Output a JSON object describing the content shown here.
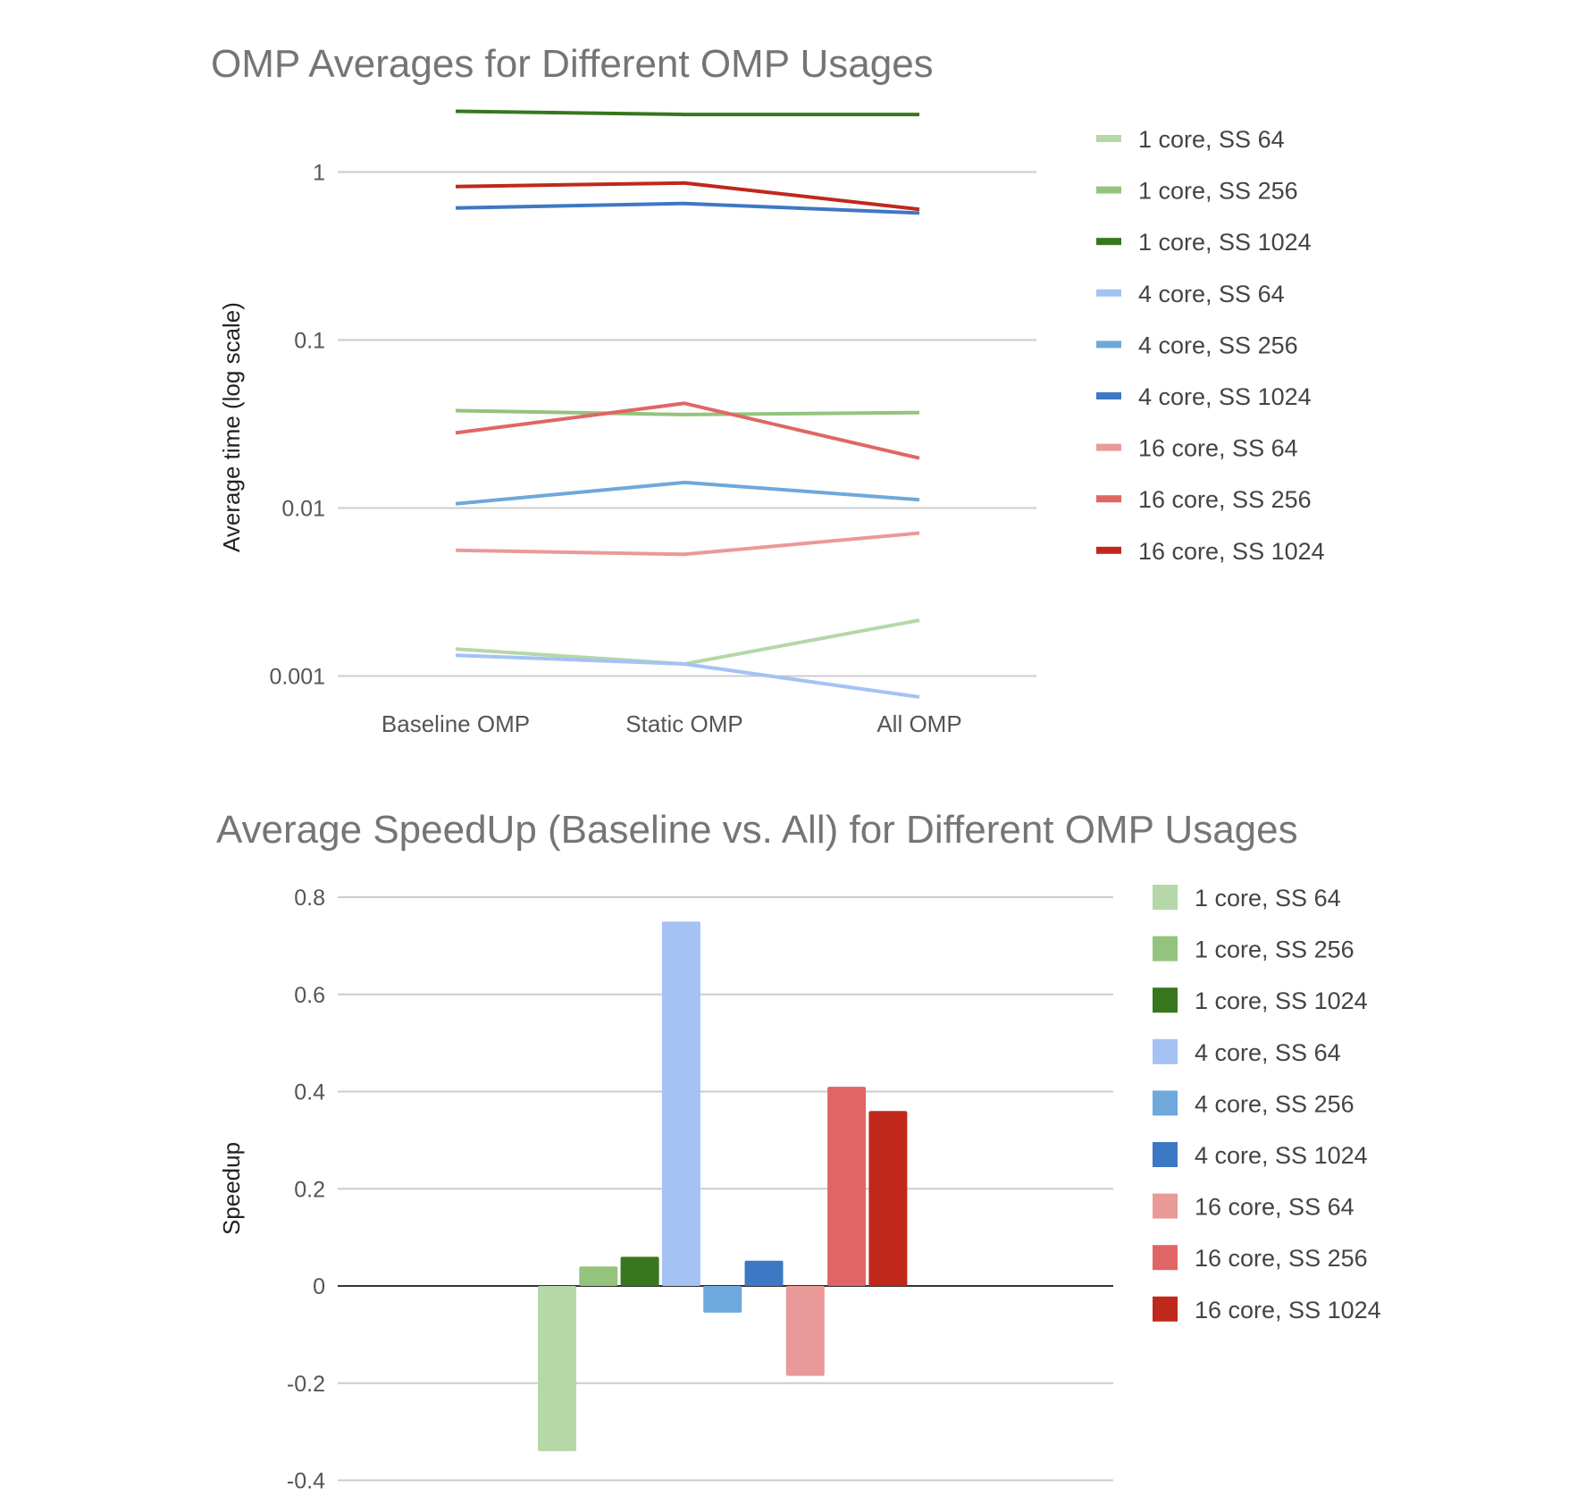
{
  "chart_data": [
    {
      "type": "line",
      "title": "OMP Averages for Different OMP Usages",
      "xlabel": "",
      "ylabel": "Average time (log scale)",
      "yscale": "log",
      "ylim": [
        0.00075,
        2.4
      ],
      "yticks": [
        1,
        0.1,
        0.01,
        0.001
      ],
      "ytick_labels": [
        "1",
        "0.1",
        "0.01",
        "0.001"
      ],
      "grid": true,
      "legend": "right",
      "categories": [
        "Baseline OMP",
        "Static OMP",
        "All OMP"
      ],
      "series": [
        {
          "name": "1 core, SS 64",
          "color": "#b6d7a8",
          "values": [
            0.00145,
            0.00118,
            0.00215
          ]
        },
        {
          "name": "1 core, SS 256",
          "color": "#93c47d",
          "values": [
            0.038,
            0.036,
            0.037
          ]
        },
        {
          "name": "1 core, SS 1024",
          "color": "#38761d",
          "values": [
            2.3,
            2.2,
            2.2
          ]
        },
        {
          "name": "4 core, SS 64",
          "color": "#a4c2f4",
          "values": [
            0.00133,
            0.00118,
            0.00075
          ]
        },
        {
          "name": "4 core, SS 256",
          "color": "#6fa8dc",
          "values": [
            0.0106,
            0.0142,
            0.0112
          ]
        },
        {
          "name": "4 core, SS 1024",
          "color": "#3d78c4",
          "values": [
            0.61,
            0.65,
            0.57
          ]
        },
        {
          "name": "16 core, SS 64",
          "color": "#ea9999",
          "values": [
            0.0056,
            0.0053,
            0.0071
          ]
        },
        {
          "name": "16 core, SS 256",
          "color": "#e06666",
          "values": [
            0.028,
            0.042,
            0.0198
          ]
        },
        {
          "name": "16 core, SS 1024",
          "color": "#c0281c",
          "values": [
            0.82,
            0.86,
            0.6
          ]
        }
      ]
    },
    {
      "type": "bar",
      "title": "Average SpeedUp (Baseline vs. All) for Different OMP Usages",
      "xlabel": "",
      "ylabel": "Speedup",
      "ylim": [
        -0.4,
        0.8
      ],
      "yticks": [
        0.8,
        0.6,
        0.4,
        0.2,
        0,
        -0.2,
        -0.4
      ],
      "ytick_labels": [
        "0.8",
        "0.6",
        "0.4",
        "0.2",
        "0",
        "-0.2",
        "-0.4"
      ],
      "grid": true,
      "legend": "right",
      "series": [
        {
          "name": "1 core, SS 64",
          "color": "#b6d7a8",
          "value": -0.34
        },
        {
          "name": "1 core, SS 256",
          "color": "#93c47d",
          "value": 0.04
        },
        {
          "name": "1 core, SS 1024",
          "color": "#38761d",
          "value": 0.06
        },
        {
          "name": "4 core, SS 64",
          "color": "#a4c2f4",
          "value": 0.75
        },
        {
          "name": "4 core, SS 256",
          "color": "#6fa8dc",
          "value": -0.055
        },
        {
          "name": "4 core, SS 1024",
          "color": "#3d78c4",
          "value": 0.052
        },
        {
          "name": "16 core, SS 64",
          "color": "#ea9999",
          "value": -0.185
        },
        {
          "name": "16 core, SS 256",
          "color": "#e06666",
          "value": 0.41
        },
        {
          "name": "16 core, SS 1024",
          "color": "#c0281c",
          "value": 0.36
        }
      ]
    }
  ]
}
